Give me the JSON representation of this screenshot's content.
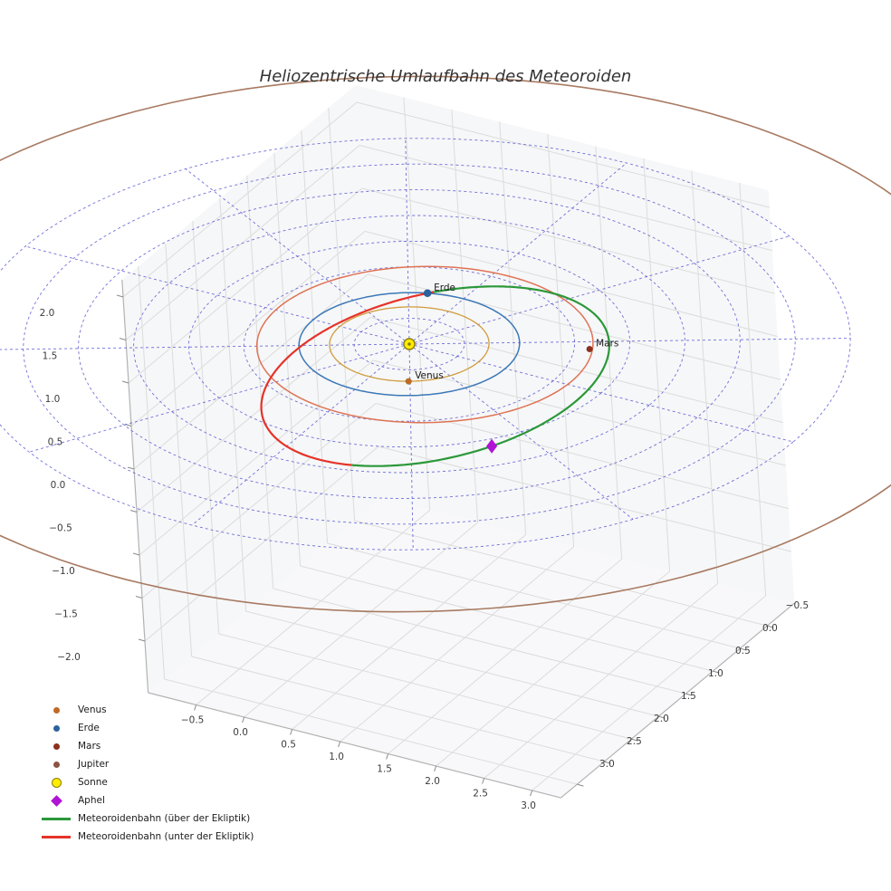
{
  "chart_data": {
    "type": "line",
    "subtype": "3d-heliocentric-orbit-plot",
    "title": "Heliozentrische Umlaufbahn des Meteoroiden",
    "axes": {
      "xlim": [
        -1,
        3.3
      ],
      "ylim": [
        -1,
        3.3
      ],
      "zlim": [
        -2.6,
        2.2
      ],
      "x_ticks": [
        -0.5,
        0.0,
        0.5,
        1.0,
        1.5,
        2.0,
        2.5,
        3.0
      ],
      "y_ticks": [
        -0.5,
        0.0,
        0.5,
        1.0,
        1.5,
        2.0,
        2.5,
        3.0
      ],
      "z_ticks": [
        -2.0,
        -1.5,
        -1.0,
        -0.5,
        0.0,
        0.5,
        1.0,
        1.5,
        2.0
      ]
    },
    "polar_grid": {
      "color": "#4343cd",
      "ring_radii_au": [
        0.5,
        1.0,
        1.5,
        2.0,
        2.5,
        3.0,
        3.5,
        4.0
      ],
      "spoke_step_deg": 30,
      "max_radius_au": 4.0
    },
    "orbits": [
      {
        "name": "Venus",
        "a_au": 0.723,
        "e": 0.0,
        "aphelion_lon_deg": 0,
        "color": "#d09c3e",
        "width": 1.3
      },
      {
        "name": "Erde",
        "a_au": 1.0,
        "e": 0.0,
        "aphelion_lon_deg": 0,
        "color": "#3c79b8",
        "width": 1.5
      },
      {
        "name": "Mars",
        "a_au": 1.524,
        "e": 0.0934,
        "aphelion_lon_deg": -25,
        "color": "#df7355",
        "width": 1.5
      },
      {
        "name": "Jupiter",
        "a_au": 5.203,
        "e": 0.0,
        "aphelion_lon_deg": 0,
        "color": "#a87a62",
        "width": 1.6
      }
    ],
    "planets": [
      {
        "name": "Venus",
        "label": "Venus",
        "r_au": 0.723,
        "theta_deg": 61,
        "color": "#c06a25",
        "size": 3.4
      },
      {
        "name": "Erde",
        "label": "Erde",
        "r_au": 1.0,
        "theta_deg": 250,
        "color": "#2a62a0",
        "size": 4.2
      },
      {
        "name": "Mars",
        "label": "Mars",
        "r_au": 1.64,
        "theta_deg": -25,
        "color": "#8e2f1c",
        "size": 3.4
      }
    ],
    "sun": {
      "label": "Sonne",
      "fill": "#ffee00",
      "edge": "#8f7d00"
    },
    "meteoroid_orbit": {
      "a_au": 1.83,
      "e": 0.46,
      "incl_deg": 14,
      "node_lon_deg": 253,
      "arg_perihelion_deg": -30,
      "color_above": "#2b9839",
      "color_below": "#e63329",
      "width": 2.2
    },
    "aphelion": {
      "label": "Aphel",
      "color": "#b013d6",
      "true_anomaly_deg": 180
    },
    "legend": {
      "items": [
        {
          "label": "Venus",
          "type": "dot",
          "color": "#c06a25"
        },
        {
          "label": "Erde",
          "type": "dot",
          "color": "#2a62a0"
        },
        {
          "label": "Mars",
          "type": "dot",
          "color": "#8e2f1c"
        },
        {
          "label": "Jupiter",
          "type": "dot",
          "color": "#8c5543"
        },
        {
          "label": "Sonne",
          "type": "sun",
          "color": "#ffee00"
        },
        {
          "label": "Aphel",
          "type": "diamond",
          "color": "#b013d6"
        },
        {
          "label": "Meteoroidenbahn (über der Ekliptik)",
          "type": "line",
          "color": "#2b9839"
        },
        {
          "label": "Meteoroidenbahn (unter der Ekliptik)",
          "type": "line",
          "color": "#e63329"
        }
      ]
    }
  },
  "style": {
    "pane_fill": "#f2f3f5",
    "pane_grid": "#dcdcdc",
    "axis_edge": "#b3b3b3",
    "tick_color": "#8a8a8a",
    "text_color": "#3c3c3c",
    "label_color": "#1a1a1a",
    "background": "#ffffff"
  }
}
